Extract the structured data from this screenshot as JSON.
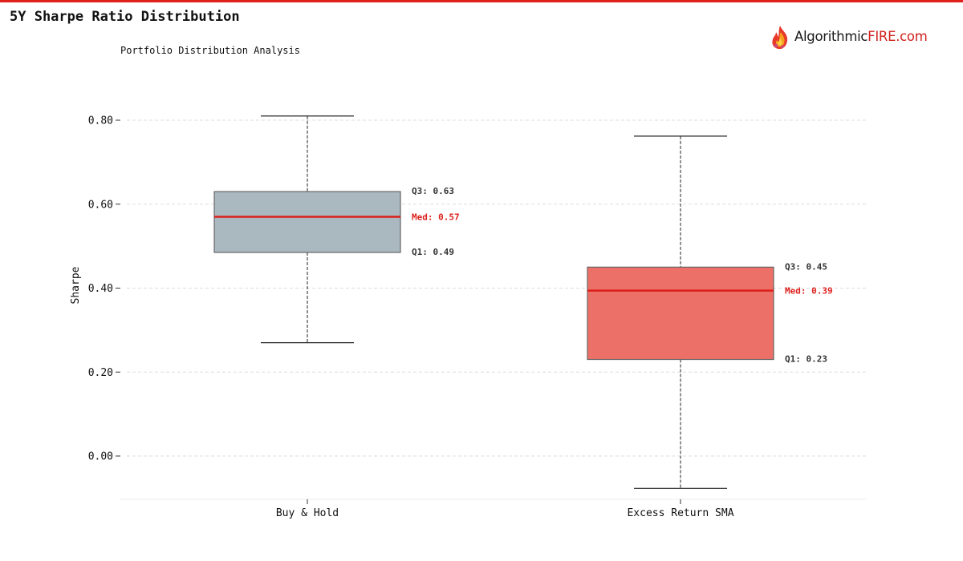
{
  "header": {
    "title": "5Y Sharpe Ratio Distribution",
    "logo": {
      "text_dark": "Algorithmic",
      "text_red": "FIRE.com"
    }
  },
  "colors": {
    "accent": "#e0201a",
    "median": "#dd1f1a",
    "box_buy_hold": "#aab8c0",
    "box_sma": "#ec7067",
    "grid": "#dddddd",
    "logo_red": "#d0231d"
  },
  "chart_data": {
    "type": "box",
    "title": "Portfolio Distribution Analysis",
    "xlabel": "",
    "ylabel": "Sharpe",
    "ylim": [
      -0.1,
      0.8
    ],
    "yticks": [
      0.0,
      0.2,
      0.4,
      0.6,
      0.8
    ],
    "ytick_labels": [
      "0.00",
      "0.20",
      "0.40",
      "0.60",
      "0.80"
    ],
    "grid": true,
    "categories": [
      "Buy & Hold",
      "Excess Return SMA"
    ],
    "boxes": [
      {
        "category": "Buy & Hold",
        "whisker_low": 0.27,
        "q1": 0.485,
        "median": 0.57,
        "q3": 0.63,
        "whisker_high": 0.81,
        "color": "#aab8c0",
        "labels": {
          "q3": "Q3: 0.63",
          "median": "Med: 0.57",
          "q1": "Q1: 0.49"
        }
      },
      {
        "category": "Excess Return SMA",
        "whisker_low": -0.077,
        "q1": 0.23,
        "median": 0.394,
        "q3": 0.45,
        "whisker_high": 0.762,
        "color": "#ec7067",
        "labels": {
          "q3": "Q3: 0.45",
          "median": "Med: 0.39",
          "q1": "Q1: 0.23"
        }
      }
    ]
  }
}
